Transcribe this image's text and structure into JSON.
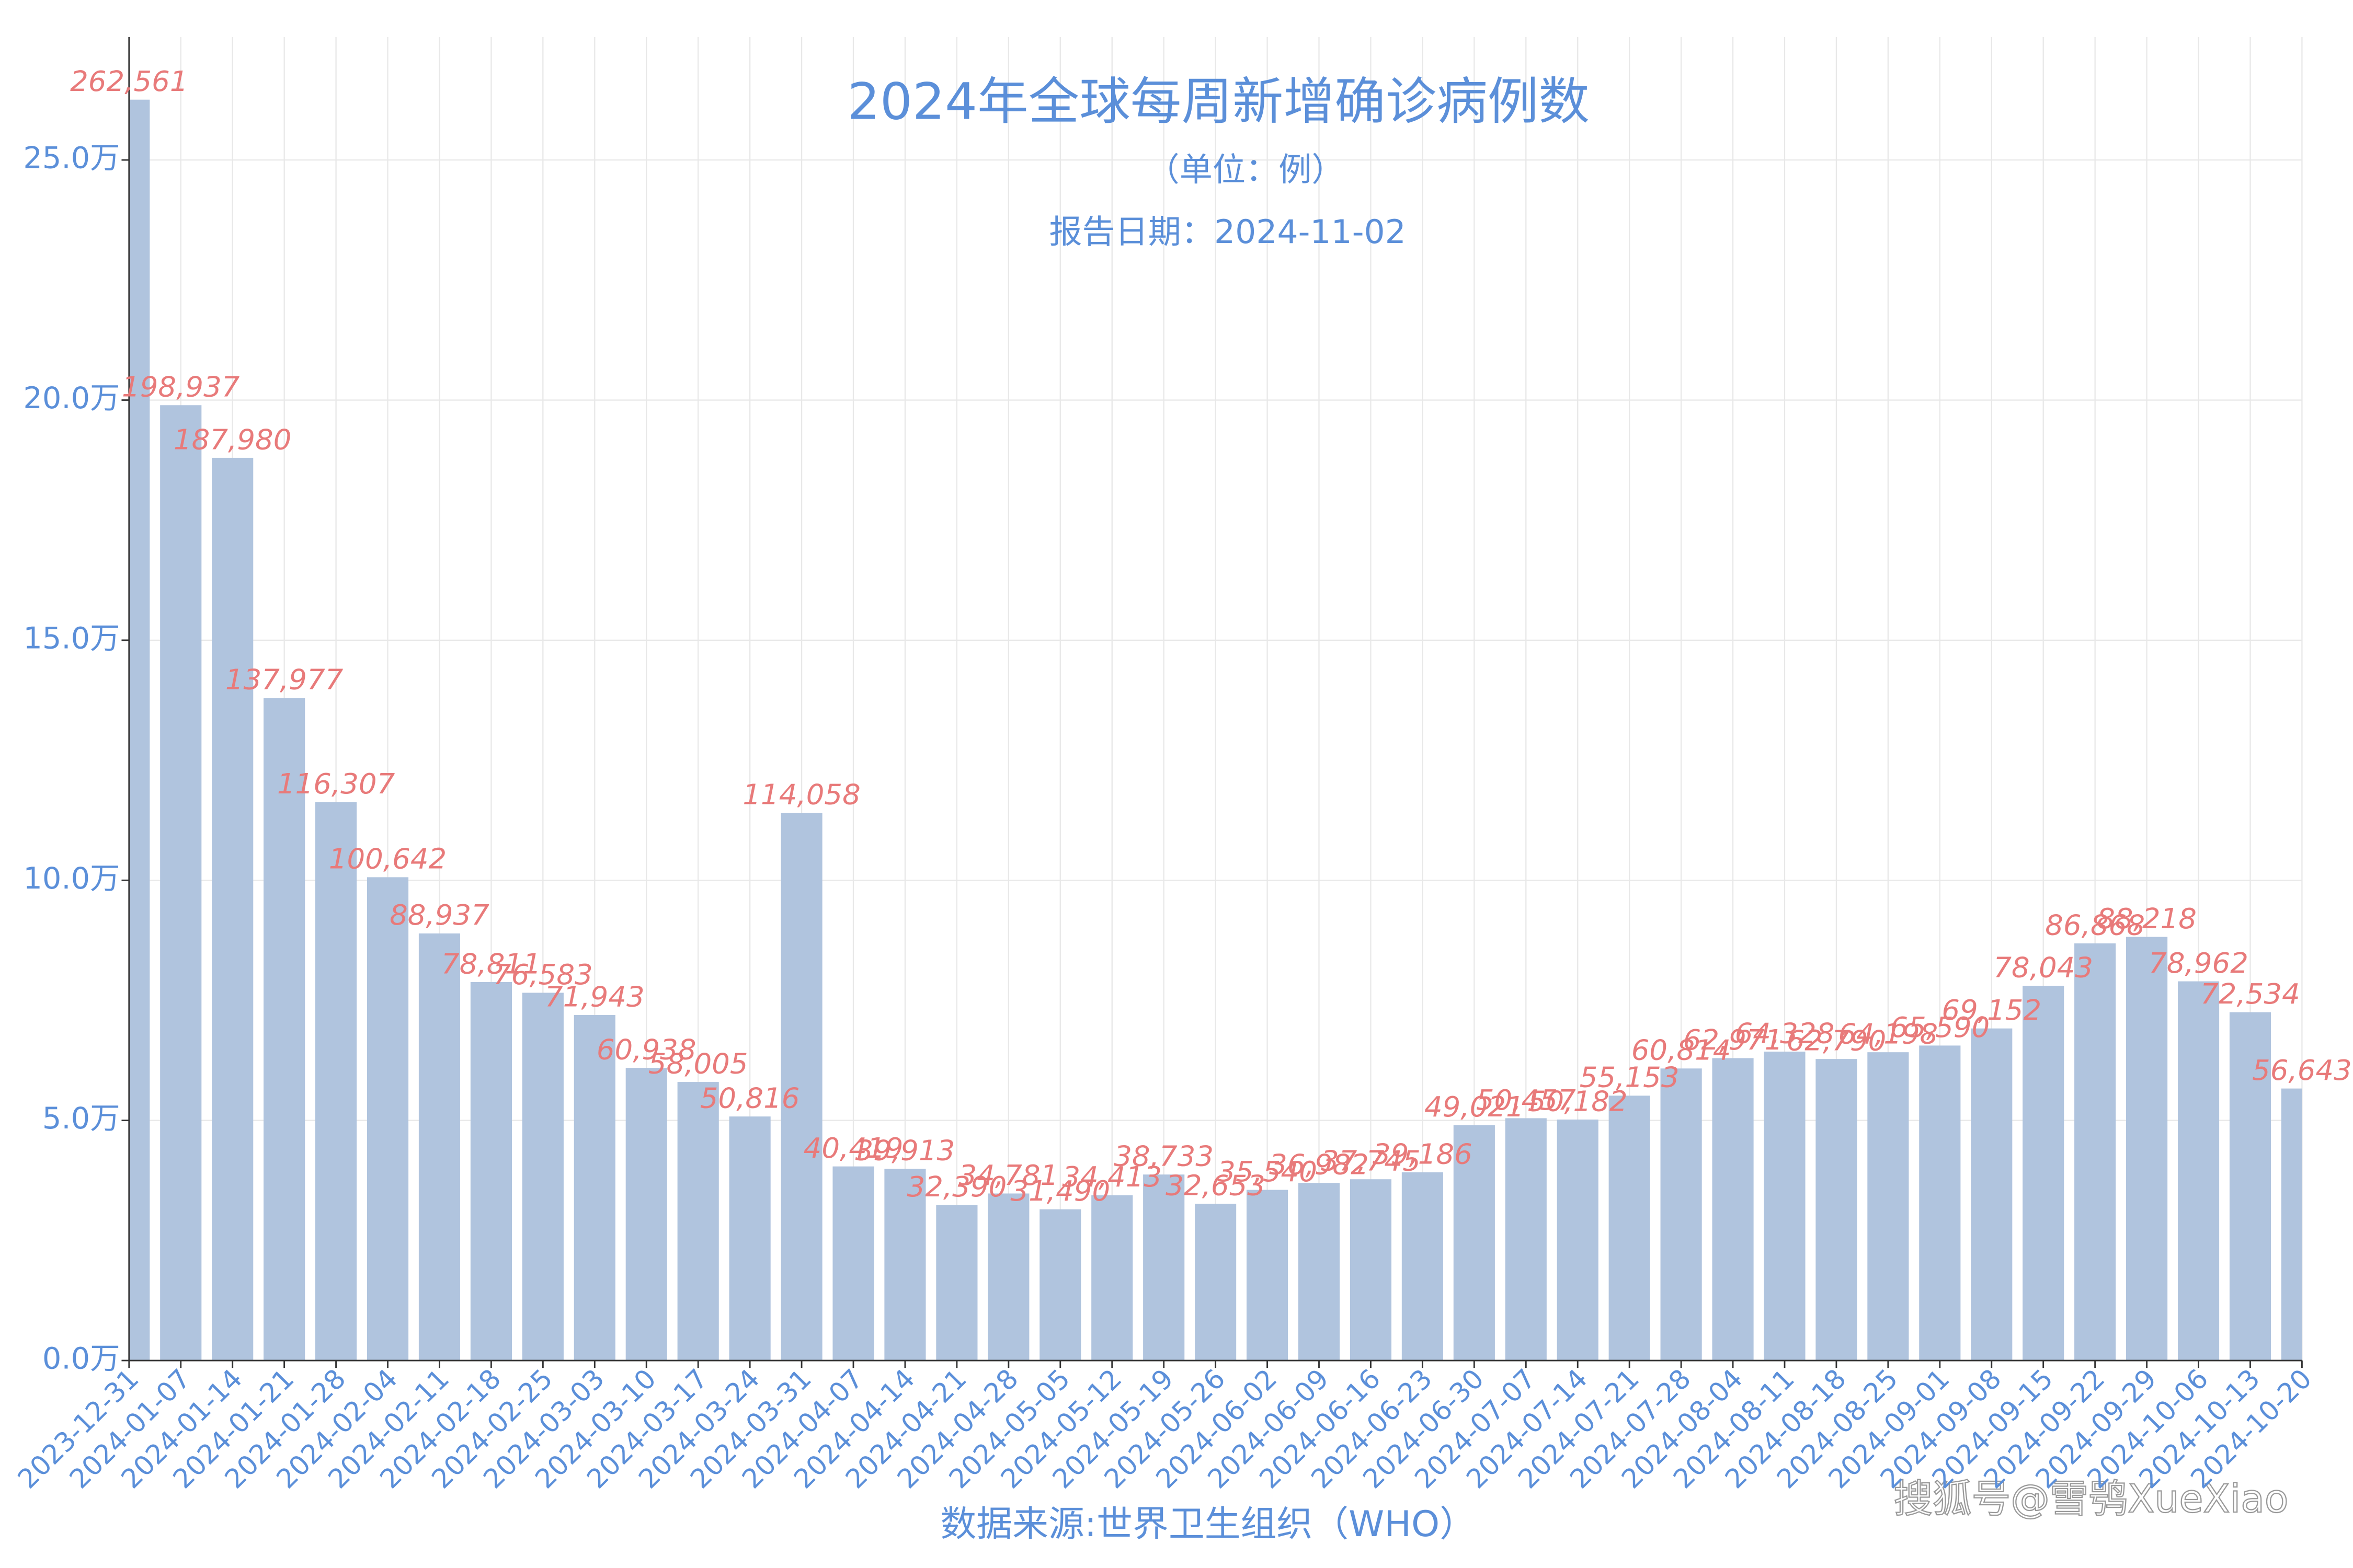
{
  "chart_data": {
    "type": "bar",
    "title": "2024年全球每周新增确诊病例数",
    "subtitle": "（单位：例）",
    "report_date": "报告日期：2024-11-02",
    "x_label": "数据来源:世界卫生组织（WHO）",
    "watermark": "搜狐号@雪鸮XueXiao",
    "categories": [
      "2023-12-31",
      "2024-01-07",
      "2024-01-14",
      "2024-01-21",
      "2024-01-28",
      "2024-02-04",
      "2024-02-11",
      "2024-02-18",
      "2024-02-25",
      "2024-03-03",
      "2024-03-10",
      "2024-03-17",
      "2024-03-24",
      "2024-03-31",
      "2024-04-07",
      "2024-04-14",
      "2024-04-21",
      "2024-04-28",
      "2024-05-05",
      "2024-05-12",
      "2024-05-19",
      "2024-05-26",
      "2024-06-02",
      "2024-06-09",
      "2024-06-16",
      "2024-06-23",
      "2024-06-30",
      "2024-07-07",
      "2024-07-14",
      "2024-07-21",
      "2024-07-28",
      "2024-08-04",
      "2024-08-11",
      "2024-08-18",
      "2024-08-25",
      "2024-09-01",
      "2024-09-08",
      "2024-09-15",
      "2024-09-22",
      "2024-09-29",
      "2024-10-06",
      "2024-10-13",
      "2024-10-20"
    ],
    "values": [
      262561,
      198937,
      187980,
      137977,
      116307,
      100642,
      88937,
      78811,
      76583,
      71943,
      60938,
      58005,
      50816,
      114058,
      40419,
      39913,
      32390,
      34781,
      31490,
      34413,
      38733,
      32653,
      35540,
      36982,
      37745,
      39186,
      49021,
      50457,
      50182,
      55153,
      60814,
      62971,
      64328,
      62790,
      64198,
      65590,
      69152,
      78043,
      86868,
      88218,
      78962,
      72534,
      56643
    ],
    "value_labels": [
      "262,561",
      "198,937",
      "187,980",
      "137,977",
      "116,307",
      "100,642",
      "88,937",
      "78,811",
      "76,583",
      "71,943",
      "60,938",
      "58,005",
      "50,816",
      "114,058",
      "40,419",
      "39,913",
      "32,390",
      "34,781",
      "31,490",
      "34,413",
      "38,733",
      "32,653",
      "35,540",
      "36,982",
      "37,745",
      "39,186",
      "49,021",
      "50,457",
      "50,182",
      "55,153",
      "60,814",
      "62,971",
      "64,328",
      "62,790",
      "64,198",
      "65,590",
      "69,152",
      "78,043",
      "86,868",
      "88,218",
      "78,962",
      "72,534",
      "56,643"
    ],
    "color": "#b0c4de",
    "label_color": "#e87a7a",
    "ylim": [
      0,
      275600
    ],
    "yticks": [
      {
        "value": 0,
        "label": "0.0万"
      },
      {
        "value": 50000,
        "label": "5.0万"
      },
      {
        "value": 100000,
        "label": "10.0万"
      },
      {
        "value": 150000,
        "label": "15.0万"
      },
      {
        "value": 200000,
        "label": "20.0万"
      },
      {
        "value": 250000,
        "label": "25.0万"
      }
    ],
    "grid": true
  }
}
